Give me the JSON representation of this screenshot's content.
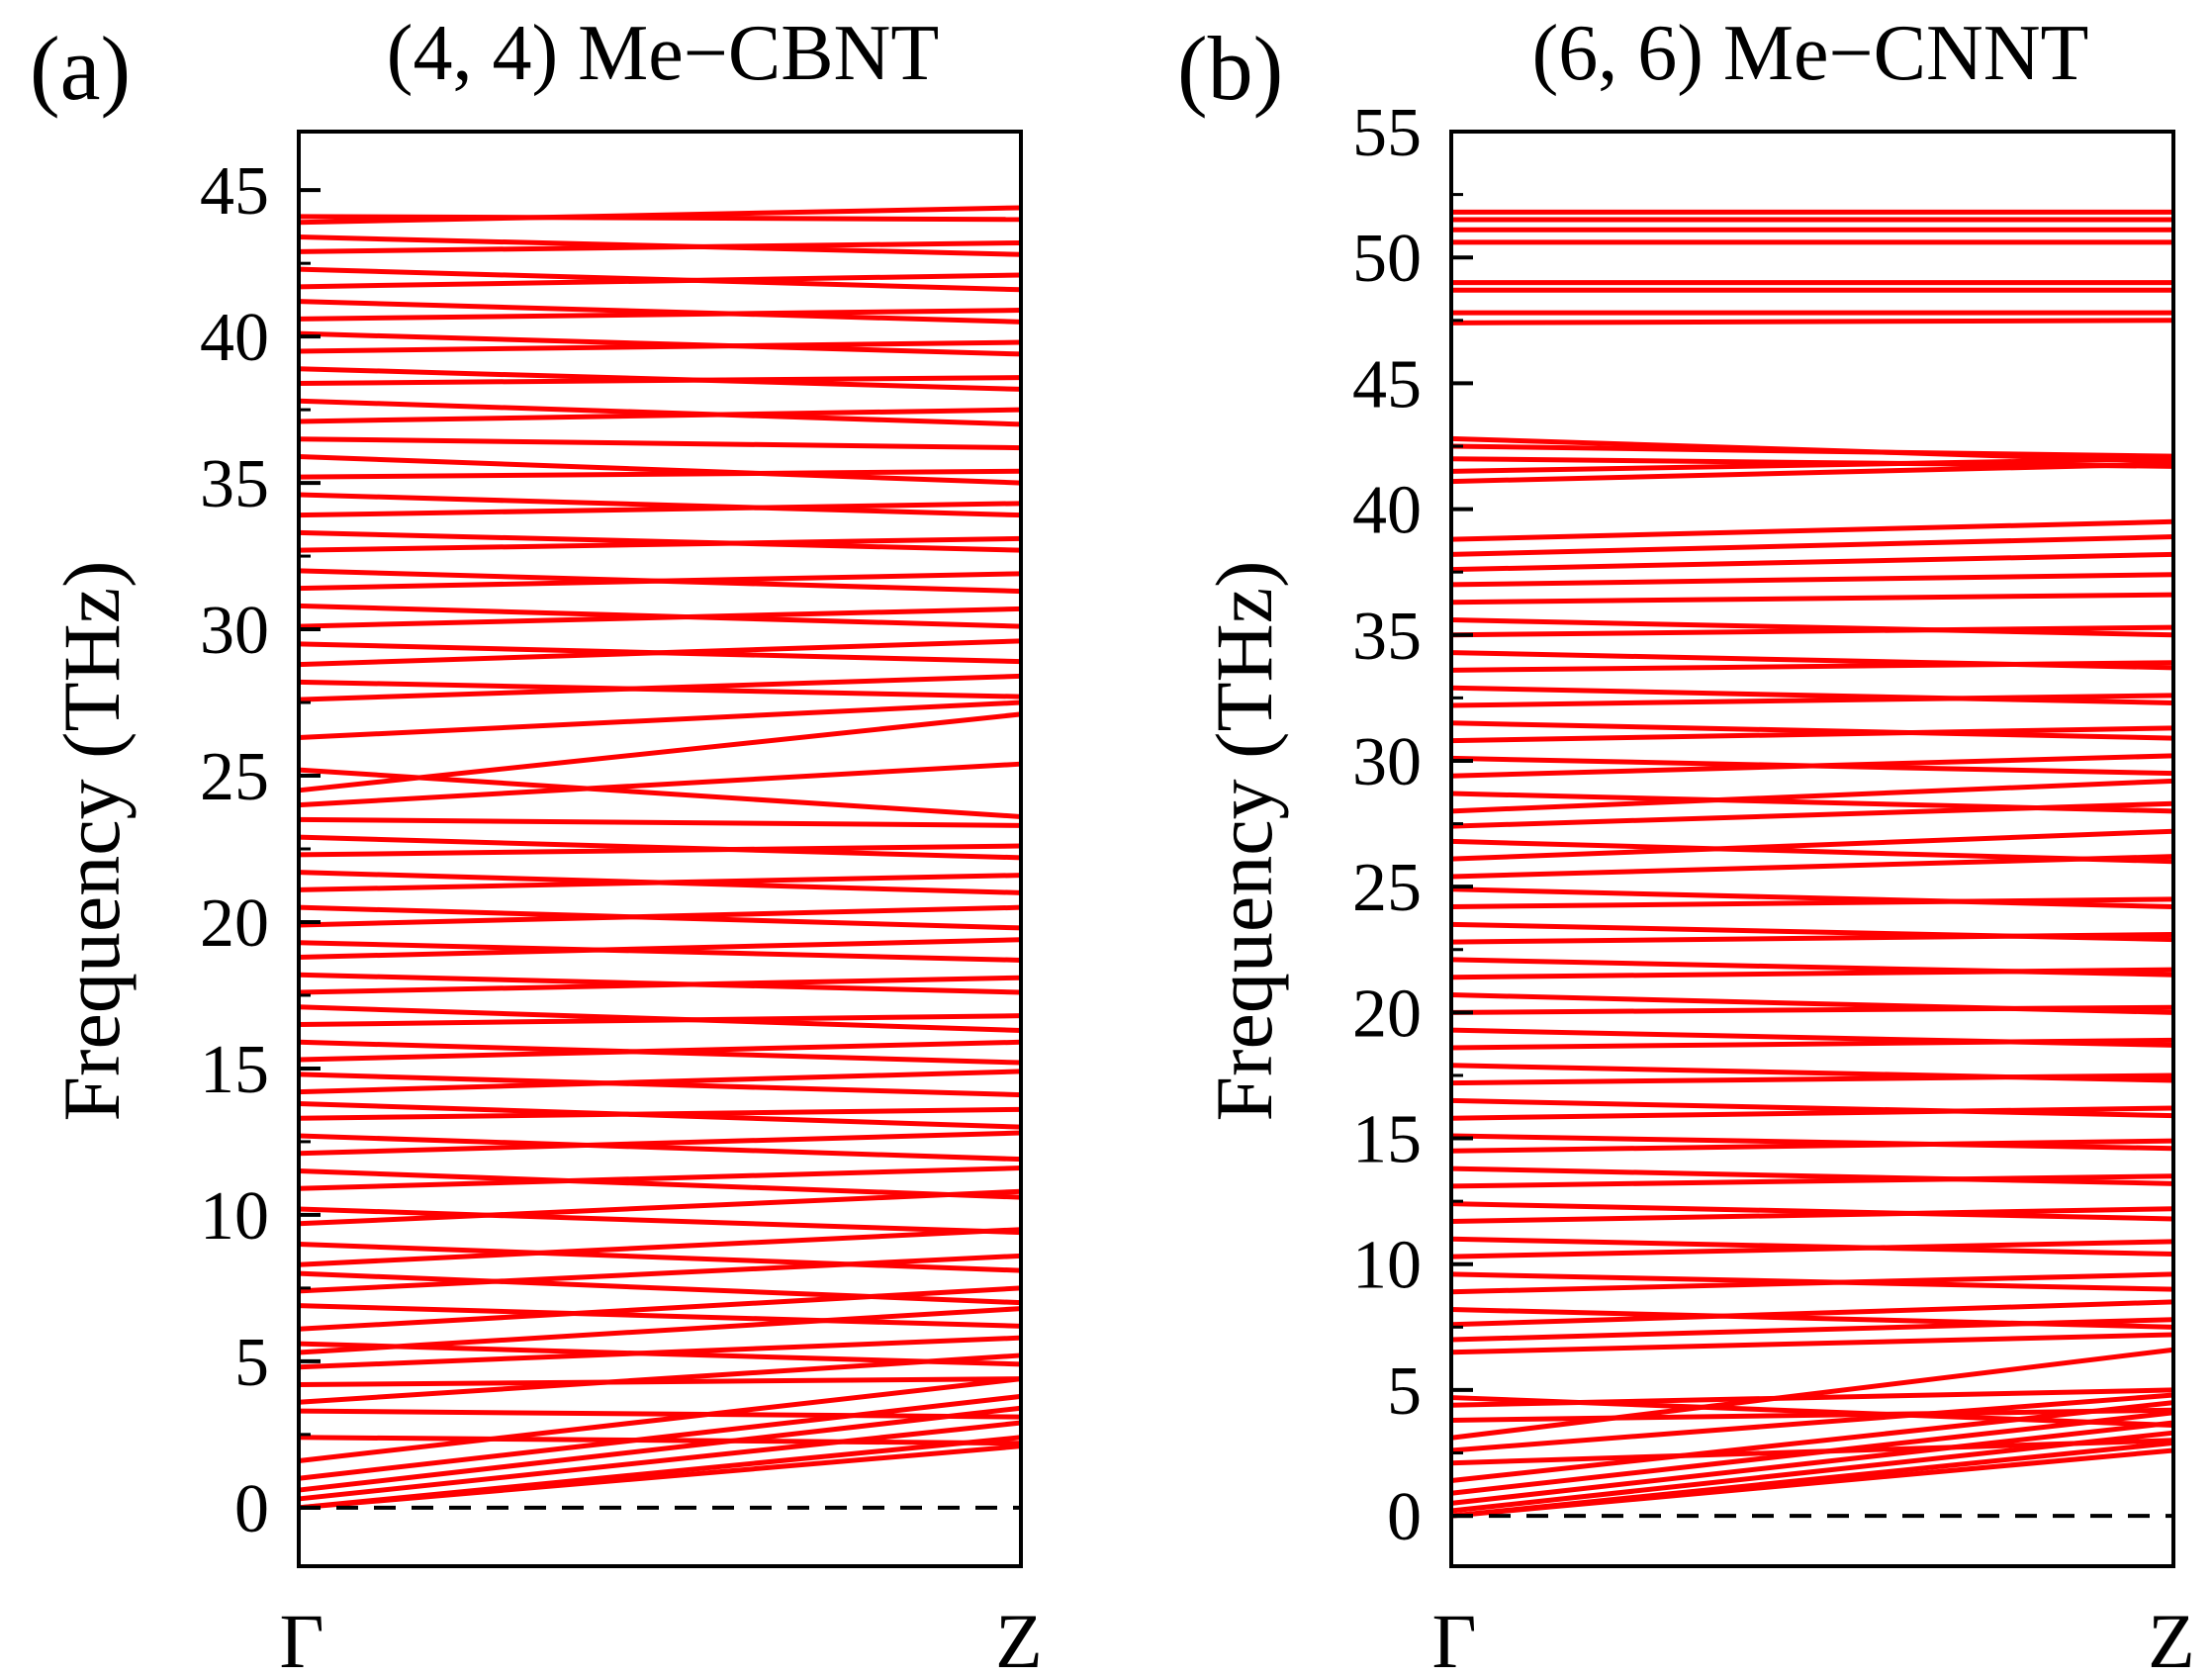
{
  "colors": {
    "band": "#ff0000",
    "axis": "#000000",
    "zero_line": "#000000"
  },
  "chart_data": [
    {
      "type": "line",
      "panel_label": "(a)",
      "title": "(4, 4) Me−CBNT",
      "xlabel": "",
      "ylabel": "Frequency (THz)",
      "x_ticks": [
        "Γ",
        "Z"
      ],
      "x": [
        0,
        1
      ],
      "ylim": [
        -2,
        47
      ],
      "y_ticks": [
        0,
        5,
        10,
        15,
        20,
        25,
        30,
        35,
        40,
        45
      ],
      "y_tick_labels": [
        "0",
        "5",
        "10",
        "15",
        "20",
        "25",
        "30",
        "35",
        "40",
        "45"
      ],
      "reference_line": {
        "y": 0,
        "style": "dashed"
      },
      "series": [
        {
          "name": "band-1",
          "values": [
            0,
            2.1
          ]
        },
        {
          "name": "band-2",
          "values": [
            0,
            2.4
          ]
        },
        {
          "name": "band-3",
          "values": [
            0.3,
            2.9
          ]
        },
        {
          "name": "band-4",
          "values": [
            0.6,
            3.4
          ]
        },
        {
          "name": "band-5",
          "values": [
            1.0,
            3.8
          ]
        },
        {
          "name": "band-6",
          "values": [
            1.6,
            4.4
          ]
        },
        {
          "name": "band-7",
          "values": [
            2.4,
            2.2
          ]
        },
        {
          "name": "band-8",
          "values": [
            3.3,
            3.1
          ]
        },
        {
          "name": "band-9",
          "values": [
            3.6,
            5.2
          ]
        },
        {
          "name": "band-10",
          "values": [
            4.2,
            4.4
          ]
        },
        {
          "name": "band-11",
          "values": [
            4.8,
            5.8
          ]
        },
        {
          "name": "band-12",
          "values": [
            5.3,
            6.8
          ]
        },
        {
          "name": "band-13",
          "values": [
            5.6,
            4.9
          ]
        },
        {
          "name": "band-14",
          "values": [
            6.1,
            7.5
          ]
        },
        {
          "name": "band-15",
          "values": [
            6.9,
            6.2
          ]
        },
        {
          "name": "band-16",
          "values": [
            7.4,
            8.6
          ]
        },
        {
          "name": "band-17",
          "values": [
            8.0,
            7.0
          ]
        },
        {
          "name": "band-18",
          "values": [
            8.3,
            9.5
          ]
        },
        {
          "name": "band-19",
          "values": [
            9.0,
            8.1
          ]
        },
        {
          "name": "band-20",
          "values": [
            9.7,
            10.8
          ]
        },
        {
          "name": "band-21",
          "values": [
            10.2,
            9.4
          ]
        },
        {
          "name": "band-22",
          "values": [
            10.9,
            11.6
          ]
        },
        {
          "name": "band-23",
          "values": [
            11.5,
            10.6
          ]
        },
        {
          "name": "band-24",
          "values": [
            12.1,
            12.8
          ]
        },
        {
          "name": "band-25",
          "values": [
            12.7,
            11.9
          ]
        },
        {
          "name": "band-26",
          "values": [
            13.3,
            13.6
          ]
        },
        {
          "name": "band-27",
          "values": [
            13.8,
            13.0
          ]
        },
        {
          "name": "band-28",
          "values": [
            14.2,
            14.9
          ]
        },
        {
          "name": "band-29",
          "values": [
            14.8,
            14.1
          ]
        },
        {
          "name": "band-30",
          "values": [
            15.3,
            15.9
          ]
        },
        {
          "name": "band-31",
          "values": [
            15.9,
            15.2
          ]
        },
        {
          "name": "band-32",
          "values": [
            16.5,
            16.8
          ]
        },
        {
          "name": "band-33",
          "values": [
            17.1,
            16.3
          ]
        },
        {
          "name": "band-34",
          "values": [
            17.6,
            18.1
          ]
        },
        {
          "name": "band-35",
          "values": [
            18.2,
            17.6
          ]
        },
        {
          "name": "band-36",
          "values": [
            18.8,
            19.4
          ]
        },
        {
          "name": "band-37",
          "values": [
            19.3,
            18.7
          ]
        },
        {
          "name": "band-38",
          "values": [
            19.9,
            20.5
          ]
        },
        {
          "name": "band-39",
          "values": [
            20.5,
            19.8
          ]
        },
        {
          "name": "band-40",
          "values": [
            21.1,
            21.6
          ]
        },
        {
          "name": "band-41",
          "values": [
            21.7,
            21.0
          ]
        },
        {
          "name": "band-42",
          "values": [
            22.3,
            22.6
          ]
        },
        {
          "name": "band-43",
          "values": [
            22.9,
            22.2
          ]
        },
        {
          "name": "band-44",
          "values": [
            23.5,
            23.3
          ]
        },
        {
          "name": "band-45",
          "values": [
            24.0,
            25.4
          ]
        },
        {
          "name": "band-46",
          "values": [
            24.5,
            27.1
          ]
        },
        {
          "name": "band-47",
          "values": [
            25.2,
            23.6
          ]
        },
        {
          "name": "band-48",
          "values": [
            26.3,
            27.5
          ]
        },
        {
          "name": "band-49",
          "values": [
            27.6,
            28.4
          ]
        },
        {
          "name": "band-50",
          "values": [
            28.2,
            27.7
          ]
        },
        {
          "name": "band-51",
          "values": [
            28.8,
            29.6
          ]
        },
        {
          "name": "band-52",
          "values": [
            29.5,
            28.9
          ]
        },
        {
          "name": "band-53",
          "values": [
            30.1,
            30.7
          ]
        },
        {
          "name": "band-54",
          "values": [
            30.8,
            30.1
          ]
        },
        {
          "name": "band-55",
          "values": [
            31.4,
            31.9
          ]
        },
        {
          "name": "band-56",
          "values": [
            32.0,
            31.3
          ]
        },
        {
          "name": "band-57",
          "values": [
            32.7,
            33.1
          ]
        },
        {
          "name": "band-58",
          "values": [
            33.3,
            32.7
          ]
        },
        {
          "name": "band-59",
          "values": [
            33.9,
            34.3
          ]
        },
        {
          "name": "band-60",
          "values": [
            34.6,
            33.9
          ]
        },
        {
          "name": "band-61",
          "values": [
            35.2,
            35.4
          ]
        },
        {
          "name": "band-62",
          "values": [
            35.9,
            35.0
          ]
        },
        {
          "name": "band-63",
          "values": [
            36.5,
            36.2
          ]
        },
        {
          "name": "band-64",
          "values": [
            37.1,
            37.5
          ]
        },
        {
          "name": "band-65",
          "values": [
            37.8,
            37.0
          ]
        },
        {
          "name": "band-66",
          "values": [
            38.4,
            38.6
          ]
        },
        {
          "name": "band-67",
          "values": [
            38.9,
            38.2
          ]
        },
        {
          "name": "band-68",
          "values": [
            39.5,
            39.8
          ]
        },
        {
          "name": "band-69",
          "values": [
            40.1,
            39.4
          ]
        },
        {
          "name": "band-70",
          "values": [
            40.6,
            40.9
          ]
        },
        {
          "name": "band-71",
          "values": [
            41.2,
            40.5
          ]
        },
        {
          "name": "band-72",
          "values": [
            41.7,
            42.1
          ]
        },
        {
          "name": "band-73",
          "values": [
            42.3,
            41.6
          ]
        },
        {
          "name": "band-74",
          "values": [
            42.9,
            43.2
          ]
        },
        {
          "name": "band-75",
          "values": [
            43.4,
            42.8
          ]
        },
        {
          "name": "band-76",
          "values": [
            43.9,
            44.4
          ]
        },
        {
          "name": "band-77",
          "values": [
            44.1,
            44.0
          ]
        }
      ]
    },
    {
      "type": "line",
      "panel_label": "(b)",
      "title": "(6, 6) Me−CNNT",
      "xlabel": "",
      "ylabel": "Frequency (THz)",
      "x_ticks": [
        "Γ",
        "Z"
      ],
      "x": [
        0,
        1
      ],
      "ylim": [
        -2,
        55
      ],
      "y_ticks": [
        0,
        5,
        10,
        15,
        20,
        25,
        30,
        35,
        40,
        45,
        50,
        55
      ],
      "y_tick_labels": [
        "0",
        "5",
        "10",
        "15",
        "20",
        "25",
        "30",
        "35",
        "40",
        "45",
        "50",
        "55"
      ],
      "reference_line": {
        "y": 0,
        "style": "dashed"
      },
      "series": [
        {
          "name": "band-1",
          "values": [
            0,
            2.6
          ]
        },
        {
          "name": "band-2",
          "values": [
            0,
            2.9
          ]
        },
        {
          "name": "band-3",
          "values": [
            0.2,
            3.3
          ]
        },
        {
          "name": "band-4",
          "values": [
            0.5,
            3.7
          ]
        },
        {
          "name": "band-5",
          "values": [
            0.9,
            4.1
          ]
        },
        {
          "name": "band-6",
          "values": [
            1.4,
            4.5
          ]
        },
        {
          "name": "band-7",
          "values": [
            2.1,
            3.0
          ]
        },
        {
          "name": "band-8",
          "values": [
            2.6,
            4.8
          ]
        },
        {
          "name": "band-9",
          "values": [
            3.1,
            6.6
          ]
        },
        {
          "name": "band-10",
          "values": [
            3.8,
            4.2
          ]
        },
        {
          "name": "band-11",
          "values": [
            4.4,
            5.0
          ]
        },
        {
          "name": "band-12",
          "values": [
            4.7,
            3.6
          ]
        },
        {
          "name": "band-13",
          "values": [
            6.5,
            7.2
          ]
        },
        {
          "name": "band-14",
          "values": [
            7.0,
            7.8
          ]
        },
        {
          "name": "band-15",
          "values": [
            7.6,
            8.5
          ]
        },
        {
          "name": "band-16",
          "values": [
            8.2,
            7.5
          ]
        },
        {
          "name": "band-17",
          "values": [
            8.9,
            9.6
          ]
        },
        {
          "name": "band-18",
          "values": [
            9.6,
            9.0
          ]
        },
        {
          "name": "band-19",
          "values": [
            10.3,
            10.9
          ]
        },
        {
          "name": "band-20",
          "values": [
            11.0,
            10.4
          ]
        },
        {
          "name": "band-21",
          "values": [
            11.7,
            12.2
          ]
        },
        {
          "name": "band-22",
          "values": [
            12.4,
            11.8
          ]
        },
        {
          "name": "band-23",
          "values": [
            13.1,
            13.5
          ]
        },
        {
          "name": "band-24",
          "values": [
            13.8,
            13.2
          ]
        },
        {
          "name": "band-25",
          "values": [
            14.5,
            14.9
          ]
        },
        {
          "name": "band-26",
          "values": [
            15.1,
            14.6
          ]
        },
        {
          "name": "band-27",
          "values": [
            15.8,
            16.2
          ]
        },
        {
          "name": "band-28",
          "values": [
            16.5,
            15.9
          ]
        },
        {
          "name": "band-29",
          "values": [
            17.2,
            17.5
          ]
        },
        {
          "name": "band-30",
          "values": [
            17.9,
            17.3
          ]
        },
        {
          "name": "band-31",
          "values": [
            18.6,
            18.9
          ]
        },
        {
          "name": "band-32",
          "values": [
            19.3,
            18.7
          ]
        },
        {
          "name": "band-33",
          "values": [
            20.0,
            20.2
          ]
        },
        {
          "name": "band-34",
          "values": [
            20.7,
            20.0
          ]
        },
        {
          "name": "band-35",
          "values": [
            21.4,
            21.7
          ]
        },
        {
          "name": "band-36",
          "values": [
            22.1,
            21.5
          ]
        },
        {
          "name": "band-37",
          "values": [
            22.8,
            23.1
          ]
        },
        {
          "name": "band-38",
          "values": [
            23.5,
            22.9
          ]
        },
        {
          "name": "band-39",
          "values": [
            24.2,
            24.5
          ]
        },
        {
          "name": "band-40",
          "values": [
            24.9,
            24.2
          ]
        },
        {
          "name": "band-41",
          "values": [
            25.4,
            26.2
          ]
        },
        {
          "name": "band-42",
          "values": [
            26.1,
            27.2
          ]
        },
        {
          "name": "band-43",
          "values": [
            26.8,
            26.0
          ]
        },
        {
          "name": "band-44",
          "values": [
            27.4,
            28.3
          ]
        },
        {
          "name": "band-45",
          "values": [
            28.0,
            29.2
          ]
        },
        {
          "name": "band-46",
          "values": [
            28.7,
            28.0
          ]
        },
        {
          "name": "band-47",
          "values": [
            29.4,
            30.2
          ]
        },
        {
          "name": "band-48",
          "values": [
            30.1,
            29.5
          ]
        },
        {
          "name": "band-49",
          "values": [
            30.8,
            31.3
          ]
        },
        {
          "name": "band-50",
          "values": [
            31.5,
            30.9
          ]
        },
        {
          "name": "band-51",
          "values": [
            32.2,
            32.6
          ]
        },
        {
          "name": "band-52",
          "values": [
            32.9,
            32.3
          ]
        },
        {
          "name": "band-53",
          "values": [
            33.6,
            33.9
          ]
        },
        {
          "name": "band-54",
          "values": [
            34.3,
            33.7
          ]
        },
        {
          "name": "band-55",
          "values": [
            35.0,
            35.3
          ]
        },
        {
          "name": "band-56",
          "values": [
            35.6,
            35.0
          ]
        },
        {
          "name": "band-57",
          "values": [
            36.3,
            36.6
          ]
        },
        {
          "name": "band-58",
          "values": [
            37.0,
            37.4
          ]
        },
        {
          "name": "band-59",
          "values": [
            37.6,
            38.2
          ]
        },
        {
          "name": "band-60",
          "values": [
            38.2,
            38.9
          ]
        },
        {
          "name": "band-61",
          "values": [
            38.8,
            39.5
          ]
        },
        {
          "name": "band-62",
          "values": [
            41.1,
            41.8
          ]
        },
        {
          "name": "band-63",
          "values": [
            41.5,
            42.0
          ]
        },
        {
          "name": "band-64",
          "values": [
            42.0,
            41.7
          ]
        },
        {
          "name": "band-65",
          "values": [
            42.5,
            42.1
          ]
        },
        {
          "name": "band-66",
          "values": [
            42.8,
            41.9
          ]
        },
        {
          "name": "band-67",
          "values": [
            47.4,
            47.5
          ]
        },
        {
          "name": "band-68",
          "values": [
            47.8,
            47.8
          ]
        },
        {
          "name": "band-69",
          "values": [
            48.7,
            48.7
          ]
        },
        {
          "name": "band-70",
          "values": [
            49.0,
            49.0
          ]
        },
        {
          "name": "band-71",
          "values": [
            50.6,
            50.6
          ]
        },
        {
          "name": "band-72",
          "values": [
            51.1,
            51.1
          ]
        },
        {
          "name": "band-73",
          "values": [
            51.5,
            51.5
          ]
        },
        {
          "name": "band-74",
          "values": [
            51.8,
            51.8
          ]
        }
      ]
    }
  ]
}
